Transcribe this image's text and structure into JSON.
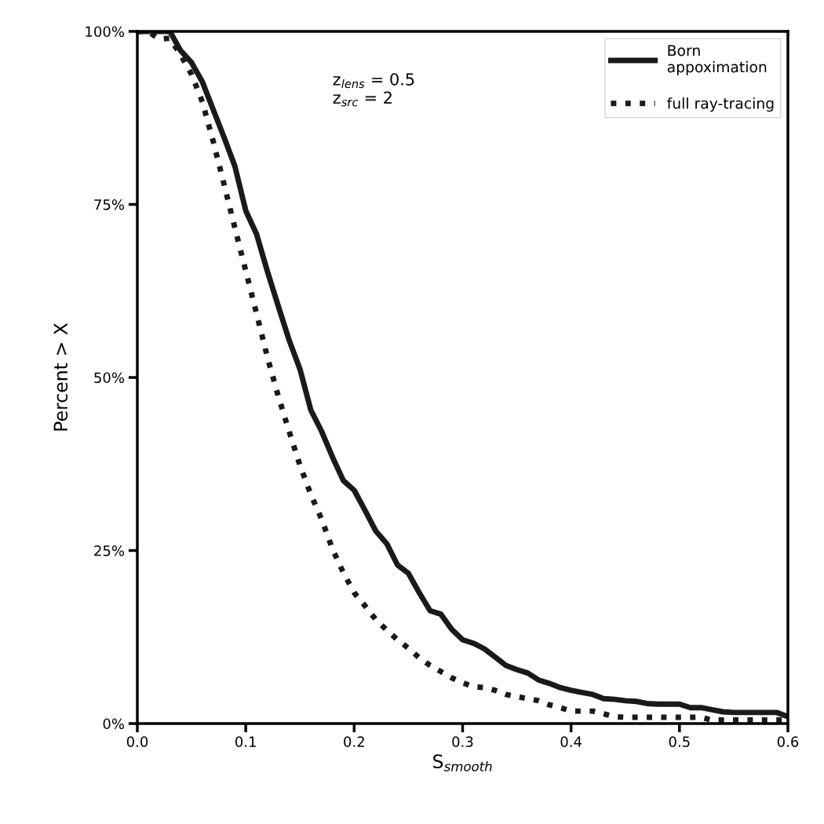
{
  "chart_data": {
    "type": "line",
    "xlabel": "S$_{smooth}$",
    "ylabel": "Percent > X",
    "annotations": [
      "z$_{lens}$ = 0.5\nz$_{src}$ = 2"
    ],
    "x": [
      0,
      0.01,
      0.02,
      0.03,
      0.04,
      0.05,
      0.06,
      0.07,
      0.08,
      0.09,
      0.1,
      0.11,
      0.12,
      0.13,
      0.14,
      0.15,
      0.16,
      0.17,
      0.18,
      0.19,
      0.2,
      0.21,
      0.22,
      0.23,
      0.24,
      0.25,
      0.26,
      0.27,
      0.28,
      0.29,
      0.3,
      0.31,
      0.32,
      0.33,
      0.34,
      0.35,
      0.36,
      0.37,
      0.38,
      0.39,
      0.4,
      0.41,
      0.42,
      0.43,
      0.44,
      0.45,
      0.46,
      0.47,
      0.48,
      0.49,
      0.5,
      0.51,
      0.52,
      0.53,
      0.54,
      0.55,
      0.56,
      0.57,
      0.58,
      0.59,
      0.6
    ],
    "series": [
      {
        "name": "Born\nappoximation",
        "color": "#1a1a1a",
        "line_style": "solid",
        "values": [
          100,
          100,
          100,
          100,
          97.2,
          95.5,
          92.7,
          88.7,
          84.7,
          80.5,
          74.1,
          70.7,
          65.3,
          60.3,
          55.4,
          51.2,
          45.3,
          42.2,
          38.5,
          35.1,
          33.7,
          30.8,
          27.8,
          26,
          22.9,
          21.7,
          18.9,
          16.3,
          15.8,
          13.6,
          12.1,
          11.6,
          10.8,
          9.6,
          8.4,
          7.8,
          7.3,
          6.3,
          5.8,
          5.2,
          4.8,
          4.5,
          4.2,
          3.6,
          3.5,
          3.3,
          3.2,
          2.9,
          2.8,
          2.8,
          2.8,
          2.3,
          2.3,
          2.0,
          1.7,
          1.6,
          1.6,
          1.6,
          1.6,
          1.6,
          1.0
        ]
      },
      {
        "name": "full ray-tracing",
        "color": "#1a1a1a",
        "line_style": "dotted",
        "values": [
          100,
          100,
          98.9,
          99,
          96.6,
          93.8,
          89.8,
          84.1,
          77.9,
          71.6,
          65.4,
          59.2,
          52.9,
          47.3,
          42.2,
          37.3,
          33.1,
          29.5,
          25.2,
          21.8,
          18.9,
          17,
          15,
          13.5,
          12.1,
          10.9,
          9.5,
          8.4,
          7.5,
          6.6,
          5.9,
          5.3,
          5.2,
          4.8,
          4.2,
          3.9,
          3.6,
          3.3,
          2.7,
          2.3,
          1.8,
          1.8,
          1.8,
          1.4,
          1.0,
          0.9,
          0.9,
          0.9,
          0.9,
          0.9,
          0.9,
          0.9,
          0.9,
          0.5,
          0.5,
          0.5,
          0.5,
          0.5,
          0.5,
          0.5,
          0.5
        ]
      }
    ],
    "xlim": [
      0,
      0.6
    ],
    "xticks": [
      {
        "value": 0,
        "label": "0.0"
      },
      0.1,
      0.2,
      0.3,
      0.4,
      0.5,
      0.6
    ],
    "ylim": [
      0,
      100
    ],
    "yticks": [
      {
        "value": 0,
        "label": "0%"
      },
      {
        "value": 25,
        "label": "25%"
      },
      {
        "value": 50,
        "label": "50%"
      },
      {
        "value": 75,
        "label": "75%"
      },
      {
        "value": 100,
        "label": "100%"
      }
    ],
    "grid": false,
    "legend": "top right"
  }
}
